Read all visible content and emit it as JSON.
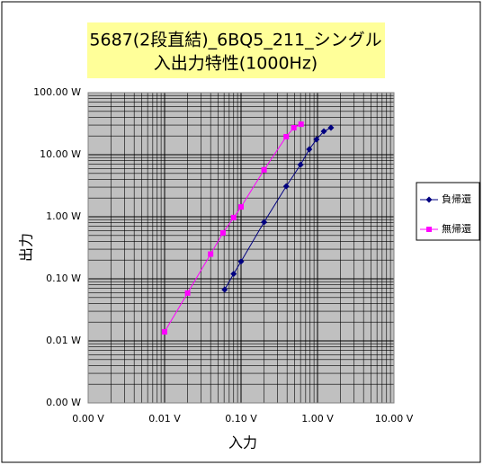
{
  "chart_data": {
    "type": "line",
    "title": [
      "5687(2段直結)_6BQ5_211_シングル",
      "入出力特性(1000Hz)"
    ],
    "x_label": "入力",
    "y_label": "出力",
    "xscale": "log",
    "yscale": "log",
    "xlim": [
      0.001,
      10
    ],
    "ylim": [
      0.001,
      100
    ],
    "xticks": [
      {
        "value": 0.001,
        "label": "0.00 V"
      },
      {
        "value": 0.01,
        "label": "0.01 V"
      },
      {
        "value": 0.1,
        "label": "0.10 V"
      },
      {
        "value": 1,
        "label": "1.00 V"
      },
      {
        "value": 10,
        "label": "10.00 V"
      }
    ],
    "yticks": [
      {
        "value": 0.001,
        "label": "0.00 W"
      },
      {
        "value": 0.01,
        "label": "0.01 W"
      },
      {
        "value": 0.1,
        "label": "0.10 W"
      },
      {
        "value": 1,
        "label": "1.00 W"
      },
      {
        "value": 10,
        "label": "10.00 W"
      },
      {
        "value": 100,
        "label": "100.00 W"
      }
    ],
    "grid": true,
    "minor_grid": true,
    "legend": "right",
    "series": [
      {
        "name": "負帰還",
        "color": "#000080",
        "marker": "diamond",
        "x": [
          0.061,
          0.08,
          0.1,
          0.2,
          0.39,
          0.6,
          0.78,
          0.97,
          1.21,
          1.5
        ],
        "values": [
          0.067,
          0.12,
          0.19,
          0.82,
          3.1,
          6.9,
          12.2,
          17.6,
          23.8,
          27.2
        ]
      },
      {
        "name": "無帰還",
        "color": "#ff00ff",
        "marker": "square",
        "x": [
          0.01,
          0.02,
          0.04,
          0.058,
          0.08,
          0.1,
          0.2,
          0.39,
          0.49,
          0.61
        ],
        "values": [
          0.014,
          0.059,
          0.25,
          0.55,
          0.97,
          1.44,
          5.7,
          19.5,
          27.2,
          31
        ]
      }
    ]
  }
}
